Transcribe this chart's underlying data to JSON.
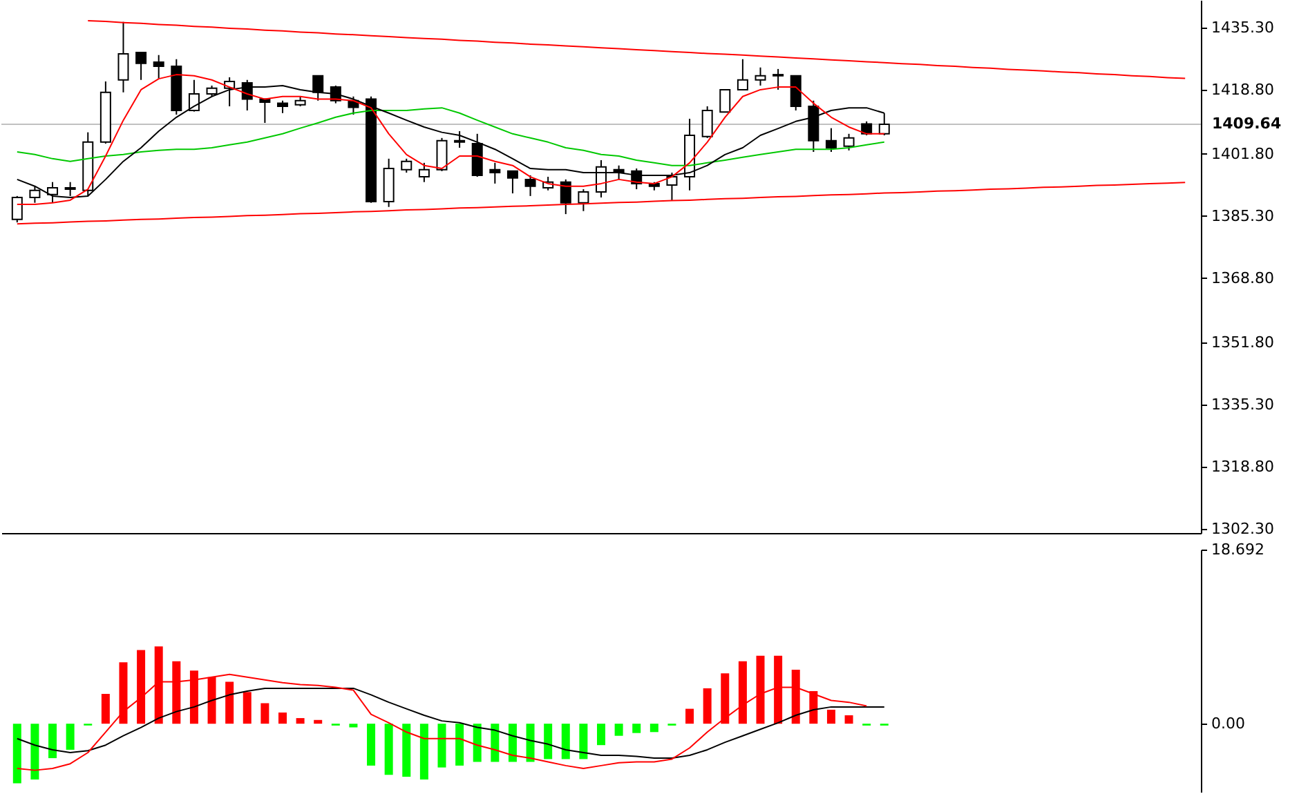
{
  "chart_data": [
    {
      "type": "candlestick",
      "categories": [
        null,
        null,
        null,
        null,
        null,
        null,
        null,
        null,
        null,
        null,
        null,
        null,
        null,
        null,
        null,
        null,
        null,
        null,
        null,
        null,
        null,
        null,
        null,
        null,
        null,
        null,
        null,
        null,
        null,
        null,
        null,
        null,
        null,
        null,
        null,
        null,
        null,
        null,
        null,
        null,
        null,
        null,
        null,
        null,
        null,
        null,
        null,
        null,
        null,
        null,
        null,
        null,
        null,
        null,
        null,
        null,
        null,
        null,
        null,
        null,
        null,
        null,
        null,
        null,
        null,
        null,
        null
      ],
      "ohlc": [
        [
          1384.4,
          1390.6,
          1383.6,
          1390.2
        ],
        [
          1390.2,
          1393.2,
          1388.8,
          1392.1
        ],
        [
          1391.0,
          1394.3,
          1388.8,
          1392.8
        ],
        [
          1392.4,
          1394.3,
          1390.6,
          1392.8
        ],
        [
          1392.1,
          1407.5,
          1390.6,
          1404.9
        ],
        [
          1404.9,
          1421.0,
          1404.5,
          1418.1
        ],
        [
          1421.4,
          1436.8,
          1418.1,
          1428.3
        ],
        [
          1428.7,
          1428.7,
          1421.4,
          1425.8
        ],
        [
          1426.1,
          1428.0,
          1421.8,
          1425.0
        ],
        [
          1425.0,
          1426.9,
          1412.2,
          1413.3
        ],
        [
          1413.3,
          1421.4,
          1413.0,
          1417.7
        ],
        [
          1417.7,
          1419.9,
          1417.0,
          1419.2
        ],
        [
          1419.2,
          1422.1,
          1414.4,
          1421.0
        ],
        [
          1420.6,
          1421.4,
          1413.3,
          1416.3
        ],
        [
          1416.3,
          1416.3,
          1410.0,
          1415.5
        ],
        [
          1415.2,
          1415.9,
          1412.6,
          1414.4
        ],
        [
          1414.8,
          1417.0,
          1414.4,
          1415.9
        ],
        [
          1422.5,
          1422.5,
          1415.9,
          1418.1
        ],
        [
          1419.5,
          1419.9,
          1415.2,
          1415.9
        ],
        [
          1415.9,
          1417.0,
          1412.2,
          1414.1
        ],
        [
          1416.3,
          1417.0,
          1388.8,
          1389.1
        ],
        [
          1389.1,
          1400.5,
          1387.7,
          1397.9
        ],
        [
          1397.6,
          1400.5,
          1396.8,
          1399.8
        ],
        [
          1395.7,
          1399.4,
          1394.3,
          1397.6
        ],
        [
          1397.6,
          1406.0,
          1397.2,
          1405.3
        ],
        [
          1405.3,
          1407.8,
          1403.4,
          1404.9
        ],
        [
          1404.5,
          1407.1,
          1395.7,
          1396.1
        ],
        [
          1397.6,
          1399.4,
          1393.9,
          1396.8
        ],
        [
          1397.2,
          1397.2,
          1391.3,
          1395.4
        ],
        [
          1395.0,
          1396.1,
          1390.6,
          1393.2
        ],
        [
          1392.8,
          1395.7,
          1392.1,
          1394.3
        ],
        [
          1394.3,
          1395.0,
          1385.8,
          1388.8
        ],
        [
          1388.8,
          1392.4,
          1386.6,
          1391.7
        ],
        [
          1391.7,
          1400.1,
          1390.2,
          1398.3
        ],
        [
          1397.6,
          1398.7,
          1395.0,
          1396.8
        ],
        [
          1397.2,
          1397.9,
          1392.4,
          1393.9
        ],
        [
          1393.9,
          1394.3,
          1392.1,
          1393.2
        ],
        [
          1393.5,
          1396.8,
          1389.5,
          1395.7
        ],
        [
          1395.7,
          1411.1,
          1392.1,
          1406.7
        ],
        [
          1406.4,
          1414.4,
          1406.0,
          1413.3
        ],
        [
          1412.9,
          1418.8,
          1412.9,
          1418.8
        ],
        [
          1418.8,
          1426.9,
          1418.8,
          1421.4
        ],
        [
          1421.4,
          1424.7,
          1419.9,
          1422.5
        ],
        [
          1422.8,
          1424.3,
          1418.8,
          1422.5
        ],
        [
          1422.5,
          1422.5,
          1413.3,
          1414.4
        ],
        [
          1414.4,
          1415.9,
          1402.3,
          1405.3
        ],
        [
          1405.3,
          1408.6,
          1402.3,
          1403.4
        ],
        [
          1403.8,
          1407.1,
          1402.7,
          1406.0
        ],
        [
          1409.7,
          1410.4,
          1406.7,
          1407.1
        ],
        [
          1407.1,
          1412.6,
          1406.7,
          1409.64
        ],
        null,
        null,
        null,
        null,
        null,
        null,
        null,
        null,
        null,
        null,
        null,
        null,
        null,
        null,
        null,
        null,
        null
      ],
      "ylim": [
        1301.2,
        1442.6
      ],
      "yticks": [
        {
          "value": 1435.3,
          "label": "1435.30"
        },
        {
          "value": 1418.8,
          "label": "1418.80"
        },
        {
          "value": 1401.8,
          "label": "1401.80"
        },
        {
          "value": 1385.3,
          "label": "1385.30"
        },
        {
          "value": 1368.8,
          "label": "1368.80"
        },
        {
          "value": 1351.8,
          "label": "1351.80"
        },
        {
          "value": 1335.3,
          "label": "1335.30"
        },
        {
          "value": 1318.8,
          "label": "1318.80"
        },
        {
          "value": 1302.3,
          "label": "1302.30"
        }
      ],
      "tick_labels": "y",
      "ref_lines": [
        {
          "axis": "y",
          "value": 1409.64,
          "label": "1409.64",
          "color": "#c0c0c0"
        }
      ],
      "series": [
        {
          "type": "line",
          "color": "#00c800",
          "values": [
            1402.3,
            1401.6,
            1400.5,
            1399.8,
            1400.5,
            1401.2,
            1401.6,
            1402.3,
            1402.7,
            1403.0,
            1403.0,
            1403.4,
            1404.2,
            1404.9,
            1406.0,
            1407.1,
            1408.6,
            1410.0,
            1411.5,
            1412.6,
            1413.3,
            1413.3,
            1413.3,
            1413.7,
            1414.0,
            1412.6,
            1410.7,
            1408.9,
            1407.1,
            1406.0,
            1404.9,
            1403.4,
            1402.7,
            1401.6,
            1401.2,
            1400.1,
            1399.4,
            1398.7,
            1398.7,
            1399.4,
            1400.1,
            1400.9,
            1401.6,
            1402.3,
            1403.0,
            1403.0,
            1403.0,
            1403.4,
            1404.2,
            1404.9,
            null,
            null,
            null,
            null,
            null,
            null,
            null,
            null,
            null,
            null,
            null,
            null,
            null,
            null,
            null,
            null,
            null
          ]
        },
        {
          "type": "line",
          "color": "#000000",
          "values": [
            1395.0,
            1393.2,
            1390.6,
            1390.2,
            1390.6,
            1395.0,
            1399.8,
            1403.4,
            1407.8,
            1411.5,
            1414.4,
            1417.0,
            1418.8,
            1419.5,
            1419.5,
            1419.9,
            1418.8,
            1418.1,
            1417.7,
            1416.3,
            1414.4,
            1412.6,
            1410.7,
            1408.9,
            1407.5,
            1406.7,
            1404.9,
            1403.0,
            1400.5,
            1397.9,
            1397.6,
            1397.6,
            1396.8,
            1396.8,
            1396.8,
            1396.1,
            1396.1,
            1396.1,
            1396.8,
            1398.7,
            1401.6,
            1403.4,
            1406.7,
            1408.5,
            1410.4,
            1411.5,
            1413.3,
            1414.0,
            1414.0,
            1412.6,
            null,
            null,
            null,
            null,
            null,
            null,
            null,
            null,
            null,
            null,
            null,
            null,
            null,
            null,
            null,
            null,
            null
          ]
        },
        {
          "type": "line",
          "color": "#ff0000",
          "values": [
            1388.4,
            1388.4,
            1388.8,
            1389.5,
            1392.4,
            1401.2,
            1410.7,
            1418.8,
            1421.7,
            1422.8,
            1422.5,
            1421.4,
            1419.5,
            1417.7,
            1416.3,
            1417.0,
            1417.0,
            1416.3,
            1416.3,
            1415.9,
            1414.0,
            1407.1,
            1401.6,
            1398.7,
            1397.9,
            1401.2,
            1401.2,
            1399.8,
            1398.7,
            1395.7,
            1393.9,
            1393.2,
            1393.2,
            1393.9,
            1395.0,
            1394.3,
            1393.9,
            1395.7,
            1399.4,
            1404.9,
            1411.5,
            1417.0,
            1418.8,
            1419.5,
            1419.5,
            1415.2,
            1411.5,
            1408.9,
            1407.1,
            1407.1,
            null,
            null,
            null,
            null,
            null,
            null,
            null,
            null,
            null,
            null,
            null,
            null,
            null,
            null,
            null,
            null,
            null
          ]
        },
        {
          "type": "line",
          "color": "#ff0000",
          "values": [
            null,
            null,
            null,
            null,
            1437.1,
            1436.9,
            1436.6,
            1436.4,
            1436.1,
            1435.9,
            1435.6,
            1435.4,
            1435.1,
            1434.9,
            1434.6,
            1434.4,
            1434.1,
            1433.9,
            1433.6,
            1433.4,
            1433.1,
            1432.9,
            1432.6,
            1432.4,
            1432.2,
            1431.9,
            1431.7,
            1431.4,
            1431.2,
            1430.9,
            1430.7,
            1430.4,
            1430.2,
            1429.9,
            1429.7,
            1429.4,
            1429.2,
            1428.9,
            1428.7,
            1428.4,
            1428.2,
            1428.0,
            1427.7,
            1427.5,
            1427.2,
            1427.0,
            1426.7,
            1426.5,
            1426.2,
            1426.0,
            1425.7,
            1425.5,
            1425.2,
            1425.0,
            1424.7,
            1424.5,
            1424.2,
            1424.0,
            1423.8,
            1423.5,
            1423.3,
            1423.0,
            1422.8,
            1422.5,
            1422.3,
            1422.0,
            1421.8
          ]
        },
        {
          "type": "line",
          "color": "#ff0000",
          "values": [
            1383.2,
            1383.4,
            1383.5,
            1383.7,
            1383.9,
            1384.0,
            1384.2,
            1384.4,
            1384.5,
            1384.7,
            1384.9,
            1385.0,
            1385.2,
            1385.4,
            1385.5,
            1385.7,
            1385.9,
            1386.0,
            1386.2,
            1386.4,
            1386.5,
            1386.7,
            1386.9,
            1387.0,
            1387.2,
            1387.4,
            1387.5,
            1387.7,
            1387.9,
            1388.0,
            1388.2,
            1388.4,
            1388.5,
            1388.7,
            1388.9,
            1389.0,
            1389.2,
            1389.4,
            1389.5,
            1389.7,
            1389.9,
            1390.0,
            1390.2,
            1390.4,
            1390.5,
            1390.7,
            1390.9,
            1391.0,
            1391.2,
            1391.4,
            1391.5,
            1391.7,
            1391.9,
            1392.0,
            1392.2,
            1392.4,
            1392.5,
            1392.7,
            1392.9,
            1393.0,
            1393.2,
            1393.4,
            1393.5,
            1393.7,
            1393.9,
            1394.0,
            1394.2
          ]
        }
      ]
    },
    {
      "type": "bar",
      "categories": [
        null,
        null,
        null,
        null,
        null,
        null,
        null,
        null,
        null,
        null,
        null,
        null,
        null,
        null,
        null,
        null,
        null,
        null,
        null,
        null,
        null,
        null,
        null,
        null,
        null,
        null,
        null,
        null,
        null,
        null,
        null,
        null,
        null,
        null,
        null,
        null,
        null,
        null,
        null,
        null,
        null,
        null,
        null,
        null,
        null,
        null,
        null,
        null,
        null,
        null,
        null,
        null,
        null,
        null,
        null,
        null,
        null,
        null,
        null,
        null,
        null,
        null,
        null,
        null,
        null,
        null,
        null
      ],
      "values": [
        -6.4,
        -6.0,
        -3.7,
        -2.8,
        -0.2,
        3.2,
        6.6,
        7.9,
        8.3,
        6.7,
        5.7,
        5.0,
        4.5,
        3.4,
        2.2,
        1.2,
        0.6,
        0.4,
        -0.2,
        -0.4,
        -4.5,
        -5.5,
        -5.7,
        -6.0,
        -4.7,
        -4.5,
        -4.1,
        -4.1,
        -4.1,
        -4.1,
        -3.8,
        -3.8,
        -3.8,
        -2.3,
        -1.3,
        -1.0,
        -0.9,
        -0.2,
        1.6,
        3.8,
        5.4,
        6.7,
        7.3,
        7.3,
        5.8,
        3.5,
        1.5,
        0.9,
        -0.2,
        -0.2,
        null,
        null,
        null,
        null,
        null,
        null,
        null,
        null,
        null,
        null,
        null,
        null,
        null,
        null,
        null,
        null,
        null
      ],
      "colors": [
        "#00ff00",
        "#00ff00",
        "#00ff00",
        "#00ff00",
        "#00ff00",
        "#ff0000",
        "#ff0000",
        "#ff0000",
        "#ff0000",
        "#ff0000",
        "#ff0000",
        "#ff0000",
        "#ff0000",
        "#ff0000",
        "#ff0000",
        "#ff0000",
        "#ff0000",
        "#ff0000",
        "#00ff00",
        "#00ff00",
        "#00ff00",
        "#00ff00",
        "#00ff00",
        "#00ff00",
        "#00ff00",
        "#00ff00",
        "#00ff00",
        "#00ff00",
        "#00ff00",
        "#00ff00",
        "#00ff00",
        "#00ff00",
        "#00ff00",
        "#00ff00",
        "#00ff00",
        "#00ff00",
        "#00ff00",
        "#00ff00",
        "#ff0000",
        "#ff0000",
        "#ff0000",
        "#ff0000",
        "#ff0000",
        "#ff0000",
        "#ff0000",
        "#ff0000",
        "#ff0000",
        "#ff0000",
        "#00ff00",
        "#00ff00",
        null,
        null,
        null,
        null,
        null,
        null,
        null,
        null,
        null,
        null,
        null,
        null,
        null,
        null,
        null,
        null,
        null
      ],
      "ylim": [
        -7.4,
        18.692
      ],
      "yticks": [
        18.692,
        {
          "value": 0,
          "label": "0.00"
        }
      ],
      "tick_labels": "y",
      "series": [
        {
          "type": "line",
          "color": "#000000",
          "values": [
            -1.6,
            -2.3,
            -2.8,
            -3.1,
            -2.9,
            -2.3,
            -1.3,
            -0.4,
            0.6,
            1.3,
            1.8,
            2.5,
            3.1,
            3.5,
            3.8,
            3.8,
            3.8,
            3.8,
            3.8,
            3.8,
            3.1,
            2.3,
            1.6,
            0.9,
            0.3,
            0.1,
            -0.4,
            -0.7,
            -1.3,
            -1.8,
            -2.2,
            -2.8,
            -3.1,
            -3.4,
            -3.4,
            -3.5,
            -3.7,
            -3.7,
            -3.4,
            -2.8,
            -2.0,
            -1.3,
            -0.6,
            0.1,
            0.9,
            1.5,
            1.8,
            1.8,
            1.8,
            1.8,
            null,
            null,
            null,
            null,
            null,
            null,
            null,
            null,
            null,
            null,
            null,
            null,
            null,
            null,
            null,
            null,
            null
          ]
        },
        {
          "type": "line",
          "color": "#ff0000",
          "values": [
            -4.8,
            -5.0,
            -4.8,
            -4.3,
            -3.1,
            -0.9,
            1.3,
            2.8,
            4.5,
            4.5,
            4.7,
            5.0,
            5.3,
            5.0,
            4.7,
            4.4,
            4.2,
            4.1,
            3.9,
            3.6,
            1.0,
            0.1,
            -0.9,
            -1.6,
            -1.6,
            -1.6,
            -2.3,
            -2.8,
            -3.4,
            -3.7,
            -4.1,
            -4.5,
            -4.8,
            -4.5,
            -4.2,
            -4.1,
            -4.1,
            -3.8,
            -2.6,
            -0.9,
            0.6,
            2.0,
            3.2,
            3.9,
            3.9,
            3.2,
            2.5,
            2.3,
            1.9,
            null,
            null,
            null,
            null,
            null,
            null,
            null,
            null,
            null,
            null,
            null,
            null,
            null,
            null,
            null,
            null,
            null,
            null
          ]
        }
      ]
    }
  ]
}
